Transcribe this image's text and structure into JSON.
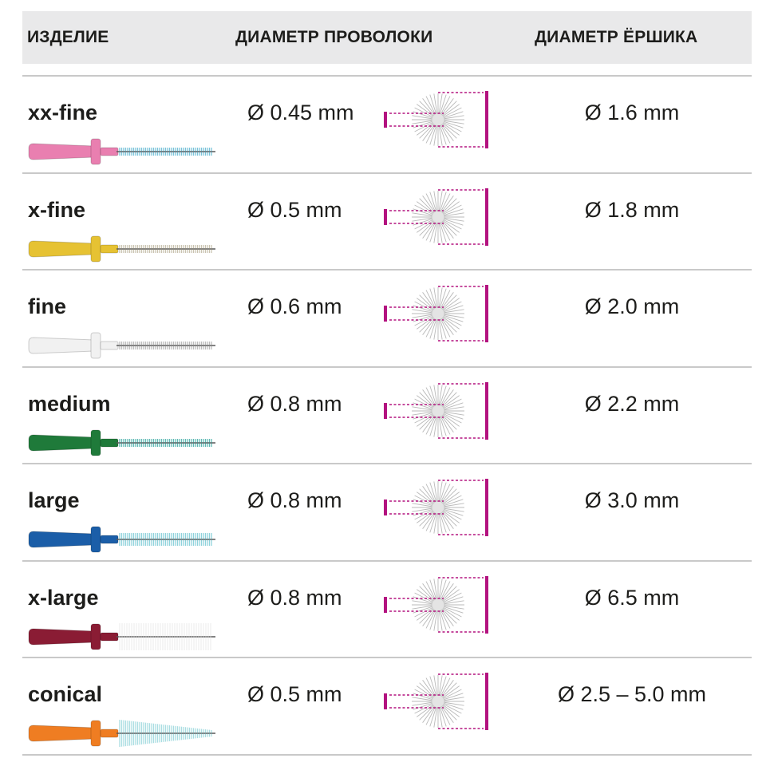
{
  "header": {
    "col_product": "ИЗДЕЛИЕ",
    "col_wire": "ДИАМЕТР ПРОВОЛОКИ",
    "col_brush": "ДИАМЕТР ЁРШИКА"
  },
  "colors": {
    "header_bg": "#e9e9ea",
    "accent_magenta": "#b3127f",
    "rule": "#c9c9c9"
  },
  "rows": [
    {
      "name": "xx-fine",
      "wire": "Ø 0.45 mm",
      "brush": "Ø 1.6 mm",
      "handle_color": "#e97fb0",
      "bristle_color": "#7ac3d9",
      "bristle_style": "thin"
    },
    {
      "name": "x-fine",
      "wire": "Ø 0.5 mm",
      "brush": "Ø 1.8 mm",
      "handle_color": "#e6c233",
      "bristle_color": "#c9c3b0",
      "bristle_style": "thin"
    },
    {
      "name": "fine",
      "wire": "Ø 0.6 mm",
      "brush": "Ø 2.0 mm",
      "handle_color": "#f1f1f1",
      "bristle_color": "#bdbdbd",
      "bristle_style": "thin"
    },
    {
      "name": "medium",
      "wire": "Ø 0.8 mm",
      "brush": "Ø 2.2 mm",
      "handle_color": "#1f7a3a",
      "bristle_color": "#5fb9b4",
      "bristle_style": "thin"
    },
    {
      "name": "large",
      "wire": "Ø 0.8 mm",
      "brush": "Ø 3.0 mm",
      "handle_color": "#1b5ea8",
      "bristle_color": "#8fd3dc",
      "bristle_style": "medium"
    },
    {
      "name": "x-large",
      "wire": "Ø 0.8 mm",
      "brush": "Ø 6.5 mm",
      "handle_color": "#8a1c34",
      "bristle_color": "#f5f5f5",
      "bristle_style": "thick"
    },
    {
      "name": "conical",
      "wire": "Ø 0.5 mm",
      "brush": "Ø 2.5 – 5.0 mm",
      "handle_color": "#ef7d22",
      "bristle_color": "#a9dde2",
      "bristle_style": "conical"
    }
  ]
}
